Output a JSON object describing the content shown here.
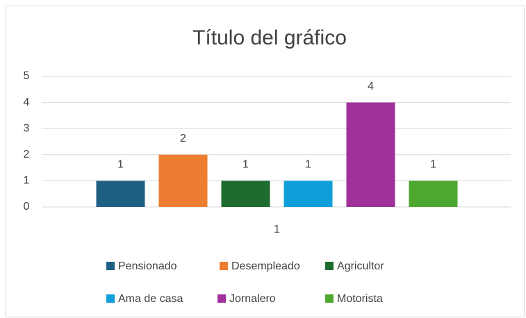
{
  "chart_data": {
    "type": "bar",
    "title": "Título del gráfico",
    "categories": [
      "1"
    ],
    "series": [
      {
        "name": "Pensionado",
        "color": "#1f5f84",
        "values": [
          1
        ]
      },
      {
        "name": "Desempleado",
        "color": "#ed7d31",
        "values": [
          2
        ]
      },
      {
        "name": "Agricultor",
        "color": "#1e6b2e",
        "values": [
          1
        ]
      },
      {
        "name": "Ama de casa",
        "color": "#0f9fd8",
        "values": [
          1
        ]
      },
      {
        "name": "Jornalero",
        "color": "#a0309a",
        "values": [
          4
        ]
      },
      {
        "name": "Motorista",
        "color": "#4ea72e",
        "values": [
          1
        ]
      }
    ],
    "ylim": [
      0,
      5
    ],
    "yticks": [
      0,
      1,
      2,
      3,
      4,
      5
    ],
    "grid": true,
    "legend": "bottom"
  }
}
